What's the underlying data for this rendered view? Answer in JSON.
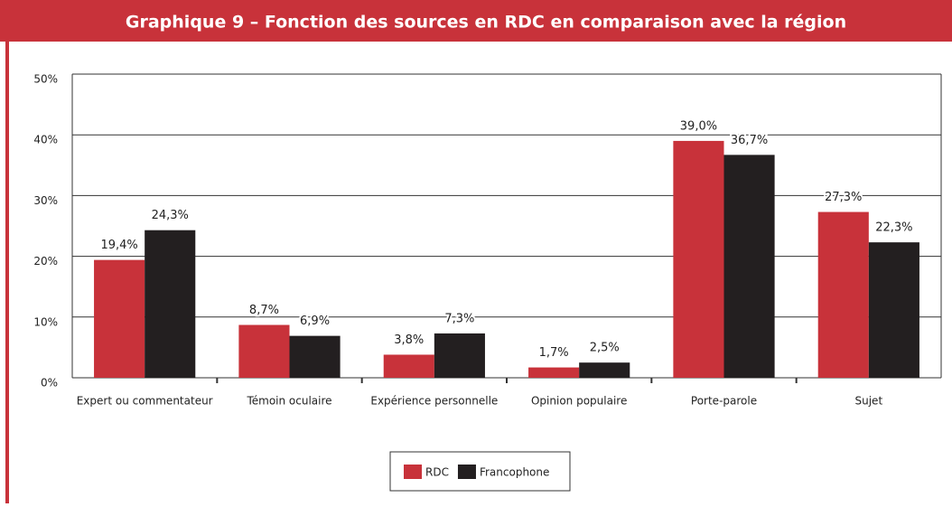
{
  "chart_data": {
    "type": "bar",
    "title": "Graphique 9 – Fonction des sources en RDC en comparaison avec la région",
    "categories": [
      "Expert ou commentateur",
      "Témoin oculaire",
      "Expérience personnelle",
      "Opinion populaire",
      "Porte-parole",
      "Sujet"
    ],
    "series": [
      {
        "name": "RDC",
        "color": "#c8323a",
        "values": [
          19.4,
          8.7,
          3.8,
          1.7,
          39.0,
          27.3
        ],
        "value_labels": [
          "19,4%",
          "8,7%",
          "3,8%",
          "1,7%",
          "39,0%",
          "27,3%"
        ]
      },
      {
        "name": "Francophone",
        "color": "#231f20",
        "values": [
          24.3,
          6.9,
          7.3,
          2.5,
          36.7,
          22.3
        ],
        "value_labels": [
          "24,3%",
          "6,9%",
          "7,3%",
          "2,5%",
          "36,7%",
          "22,3%"
        ]
      }
    ],
    "ylim": [
      0,
      50
    ],
    "yticks": [
      {
        "value": 0,
        "label": "0%"
      },
      {
        "value": 10,
        "label": "10%"
      },
      {
        "value": 20,
        "label": "20%"
      },
      {
        "value": 30,
        "label": "30%"
      },
      {
        "value": 40,
        "label": "40%"
      },
      {
        "value": 50,
        "label": "50%"
      }
    ],
    "grid": true,
    "legend": "bottom"
  }
}
